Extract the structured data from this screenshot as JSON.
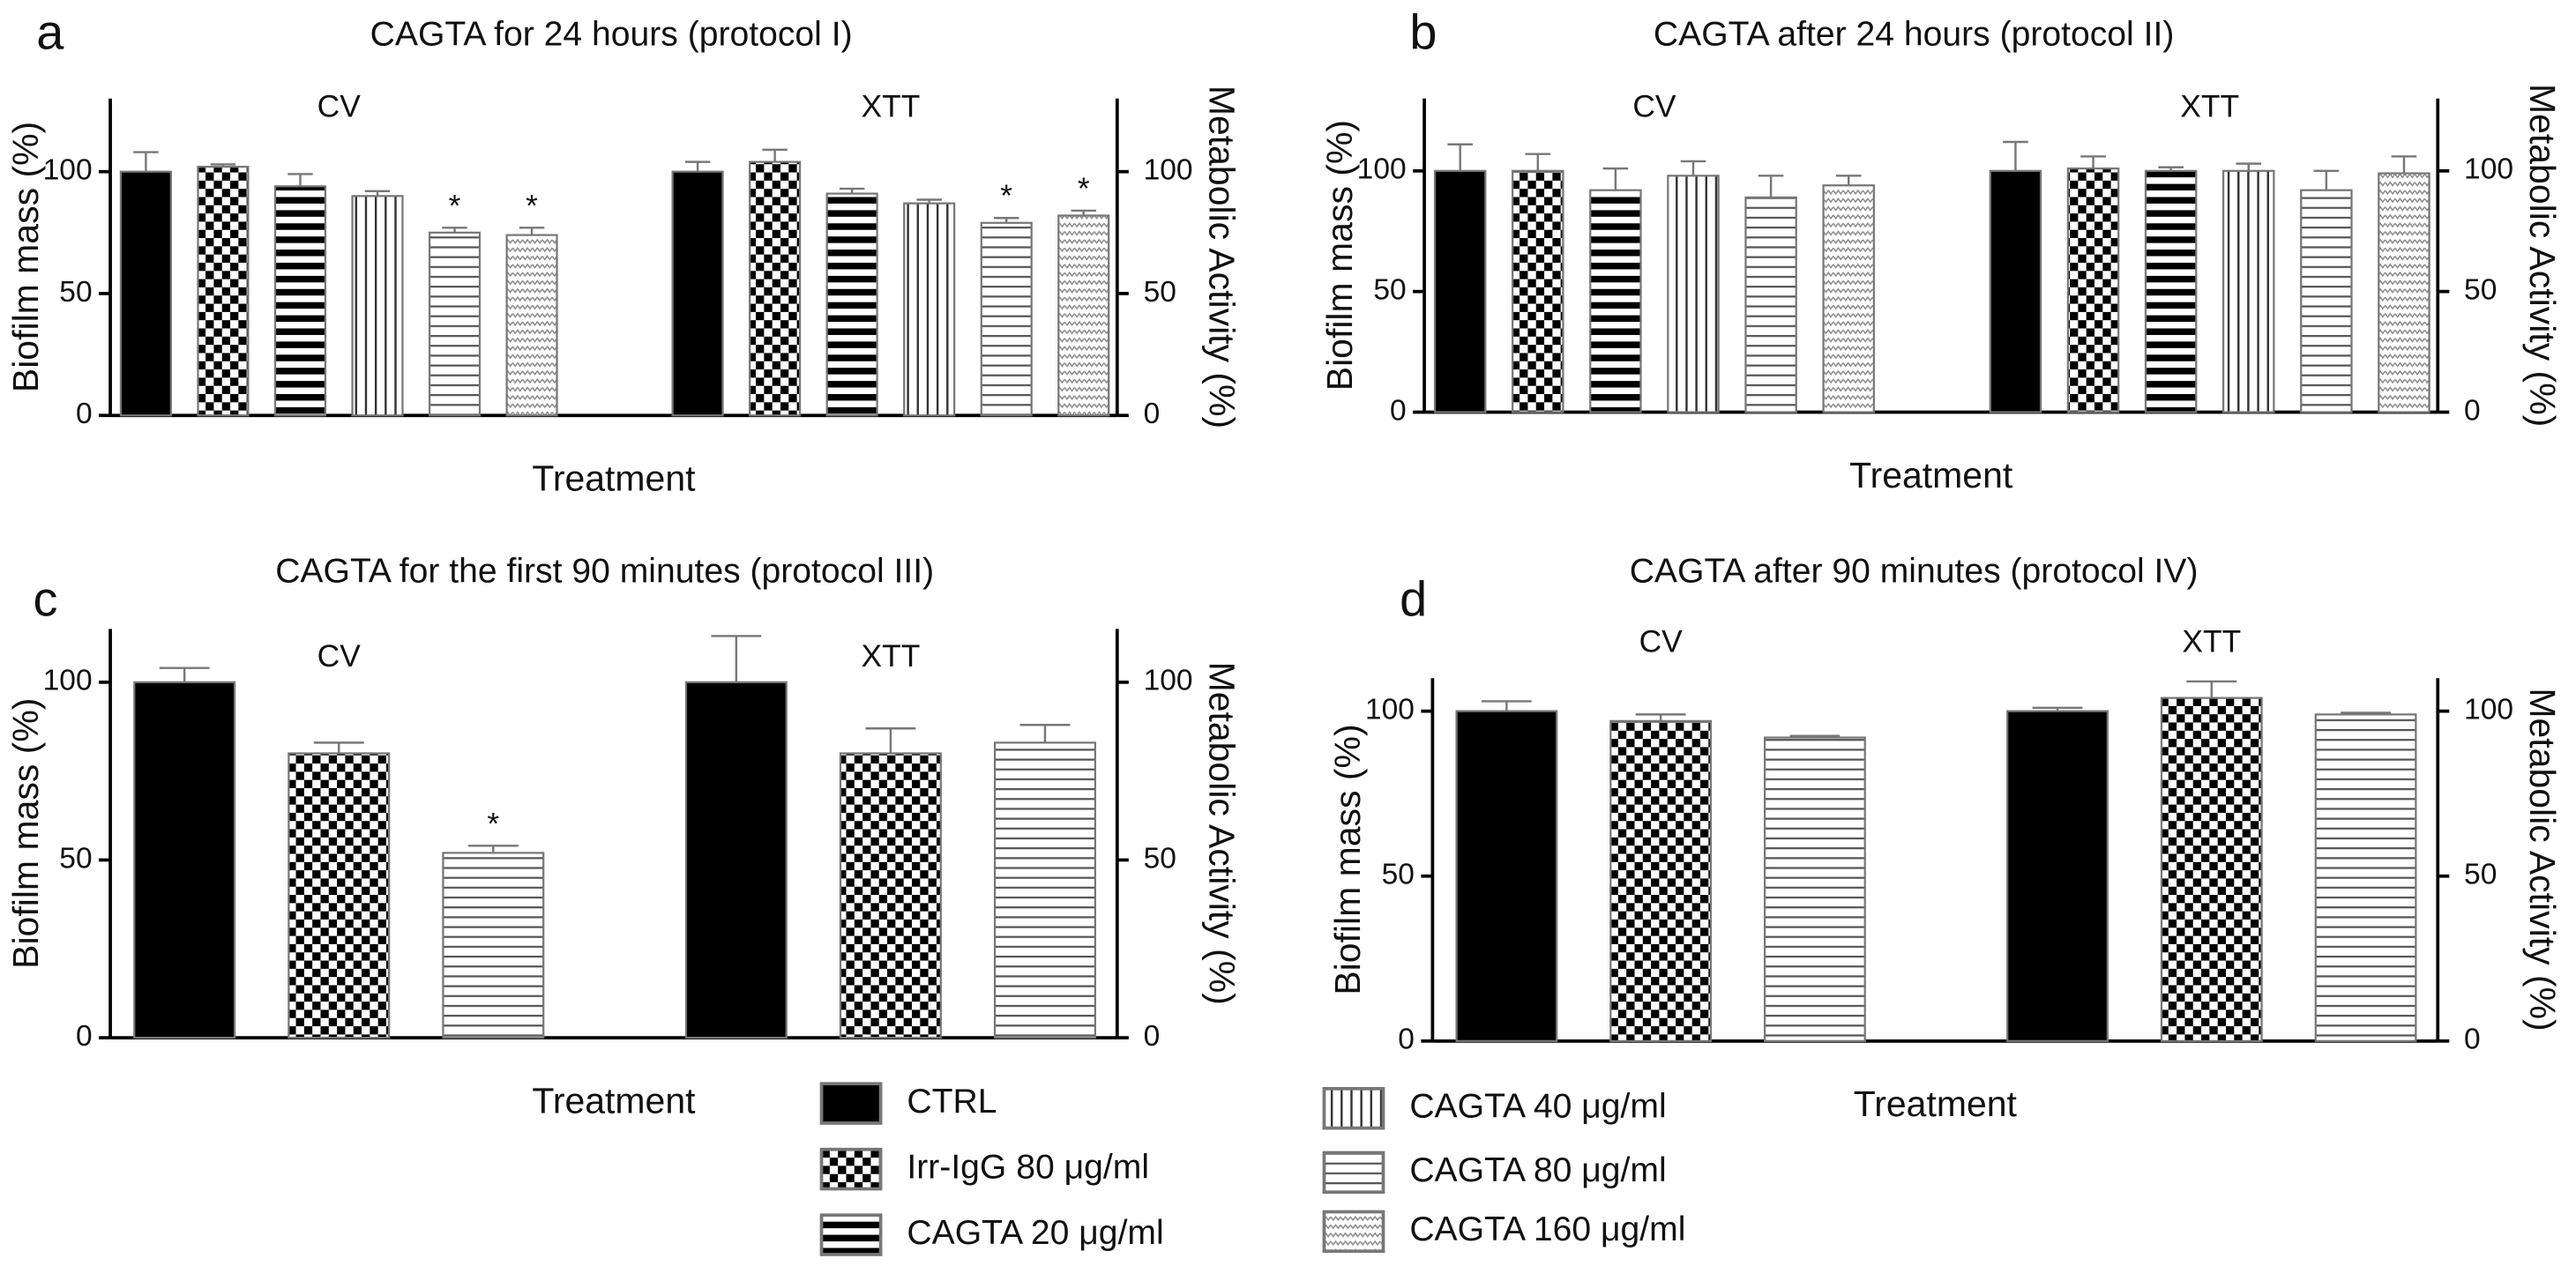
{
  "chart_data": [
    {
      "type": "bar",
      "panel": "a",
      "title": "CAGTA for 24 hours (protocol I)",
      "xlabel": "Treatment",
      "ylabel": "Biofilm mass (%)",
      "y2label": "Metabolic Activity (%)",
      "categories": [
        "CV",
        "XTT"
      ],
      "ylim": [
        0,
        130
      ],
      "yticks": [
        0,
        50,
        100
      ],
      "y2lim": [
        0,
        130
      ],
      "y2ticks": [
        0,
        50,
        100
      ],
      "series": [
        {
          "pattern": "solid",
          "values": [
            100,
            100
          ],
          "errors": [
            8,
            4
          ],
          "significance": [
            null,
            null
          ]
        },
        {
          "pattern": "checker",
          "values": [
            102,
            104
          ],
          "errors": [
            1,
            5
          ],
          "significance": [
            null,
            null
          ]
        },
        {
          "pattern": "hthick",
          "values": [
            94,
            91
          ],
          "errors": [
            5,
            2
          ],
          "significance": [
            null,
            null
          ]
        },
        {
          "pattern": "vthin",
          "values": [
            90,
            87
          ],
          "errors": [
            2,
            1.5
          ],
          "significance": [
            null,
            null
          ]
        },
        {
          "pattern": "hthin",
          "values": [
            75,
            79
          ],
          "errors": [
            2,
            2
          ],
          "significance": [
            "*",
            "*"
          ]
        },
        {
          "pattern": "dots",
          "values": [
            74,
            82
          ],
          "errors": [
            3,
            2
          ],
          "significance": [
            "*",
            "*"
          ]
        }
      ]
    },
    {
      "type": "bar",
      "panel": "b",
      "title": "CAGTA after 24 hours (protocol II)",
      "xlabel": "Treatment",
      "ylabel": "Biofilm mass (%)",
      "y2label": "Metabolic Activity (%)",
      "categories": [
        "CV",
        "XTT"
      ],
      "ylim": [
        0,
        130
      ],
      "yticks": [
        0,
        50,
        100
      ],
      "y2lim": [
        0,
        130
      ],
      "y2ticks": [
        0,
        50,
        100
      ],
      "series": [
        {
          "pattern": "solid",
          "values": [
            100,
            100
          ],
          "errors": [
            11,
            12
          ]
        },
        {
          "pattern": "checker",
          "values": [
            100,
            101
          ],
          "errors": [
            7,
            5
          ]
        },
        {
          "pattern": "hthick",
          "values": [
            92,
            100
          ],
          "errors": [
            9,
            1.5
          ]
        },
        {
          "pattern": "vthin",
          "values": [
            98,
            100
          ],
          "errors": [
            6,
            3
          ]
        },
        {
          "pattern": "hthin",
          "values": [
            89,
            92
          ],
          "errors": [
            9,
            8
          ]
        },
        {
          "pattern": "dots",
          "values": [
            94,
            99
          ],
          "errors": [
            4,
            7
          ]
        }
      ]
    },
    {
      "type": "bar",
      "panel": "c",
      "title": "CAGTA  for the first 90 minutes (protocol III)",
      "xlabel": "Treatment",
      "ylabel": "Biofilm mass (%)",
      "y2label": "Metabolic Activity (%)",
      "categories": [
        "CV",
        "XTT"
      ],
      "ylim": [
        0,
        115
      ],
      "yticks": [
        0,
        50,
        100
      ],
      "y2lim": [
        0,
        115
      ],
      "y2ticks": [
        0,
        50,
        100
      ],
      "series": [
        {
          "pattern": "solid",
          "values": [
            100,
            100
          ],
          "errors": [
            4,
            13
          ],
          "significance": [
            null,
            null
          ]
        },
        {
          "pattern": "checker",
          "values": [
            80,
            80
          ],
          "errors": [
            3,
            7
          ],
          "significance": [
            null,
            null
          ]
        },
        {
          "pattern": "hthin",
          "values": [
            52,
            83
          ],
          "errors": [
            2,
            5
          ],
          "significance": [
            "*",
            null
          ]
        }
      ]
    },
    {
      "type": "bar",
      "panel": "d",
      "title": "CAGTA after 90 minutes (protocol IV)",
      "xlabel": "Treatment",
      "ylabel": "Biofilm mass (%)",
      "y2label": "Metabolic Activity (%)",
      "categories": [
        "CV",
        "XTT"
      ],
      "ylim": [
        0,
        110
      ],
      "yticks": [
        0,
        50,
        100
      ],
      "y2lim": [
        0,
        110
      ],
      "y2ticks": [
        0,
        50,
        100
      ],
      "series": [
        {
          "pattern": "solid",
          "values": [
            100,
            100
          ],
          "errors": [
            3,
            1
          ]
        },
        {
          "pattern": "checker",
          "values": [
            97,
            104
          ],
          "errors": [
            2,
            5
          ]
        },
        {
          "pattern": "hthin",
          "values": [
            92,
            99
          ],
          "errors": [
            0.5,
            0.5
          ]
        }
      ]
    }
  ],
  "legend": [
    {
      "label": "CTRL",
      "pattern": "solid"
    },
    {
      "label": "Irr-IgG 80 μg/ml",
      "pattern": "checker"
    },
    {
      "label": "CAGTA 20 μg/ml",
      "pattern": "hthick"
    },
    {
      "label": "CAGTA 40 μg/ml",
      "pattern": "vthin"
    },
    {
      "label": "CAGTA 80  μg/ml",
      "pattern": "hthin"
    },
    {
      "label": "CAGTA 160  μg/ml",
      "pattern": "dots"
    }
  ]
}
